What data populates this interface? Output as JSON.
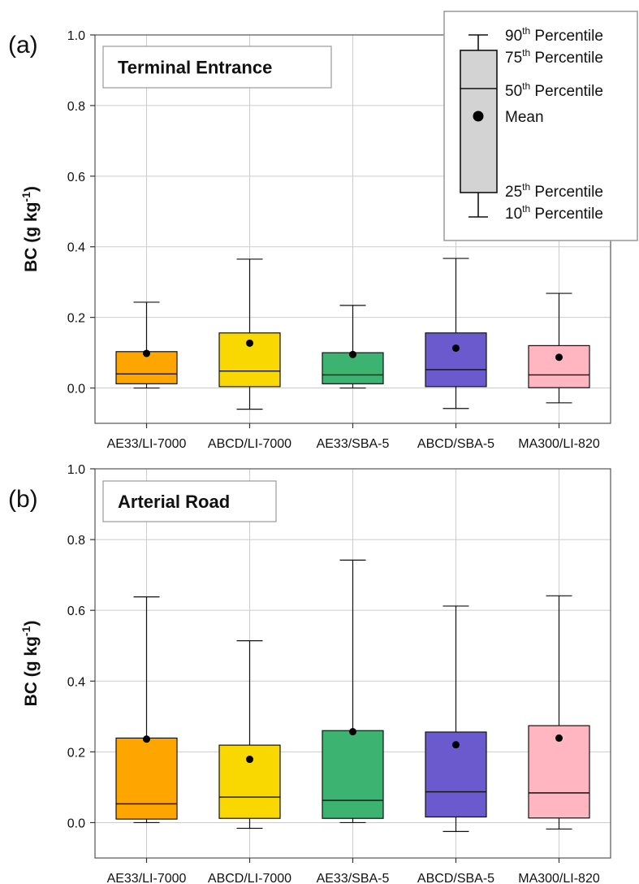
{
  "chart_data": [
    {
      "type": "box",
      "panel_label": "(a)",
      "title": "Terminal Entrance",
      "ylabel": "BC (g kg",
      "ylabel_sup": "-1",
      "ylabel_tail": ")",
      "ylim": [
        -0.1,
        1.0
      ],
      "yticks": [
        "0.0",
        "0.2",
        "0.4",
        "0.6",
        "0.8",
        "1.0"
      ],
      "grid": true,
      "categories": [
        "AE33/LI-7000",
        "ABCD/LI-7000",
        "AE33/SBA-5",
        "ABCD/SBA-5",
        "MA300/LI-820"
      ],
      "boxes": [
        {
          "p10": 0.0,
          "p25": 0.012,
          "median": 0.04,
          "p75": 0.103,
          "p90": 0.243,
          "mean": 0.098,
          "color": "#FFA500"
        },
        {
          "p10": -0.06,
          "p25": 0.004,
          "median": 0.048,
          "p75": 0.156,
          "p90": 0.365,
          "mean": 0.127,
          "color": "#F9D700"
        },
        {
          "p10": 0.0,
          "p25": 0.012,
          "median": 0.037,
          "p75": 0.1,
          "p90": 0.234,
          "mean": 0.095,
          "color": "#3CB371"
        },
        {
          "p10": -0.058,
          "p25": 0.004,
          "median": 0.052,
          "p75": 0.156,
          "p90": 0.367,
          "mean": 0.113,
          "color": "#6A5ACD"
        },
        {
          "p10": -0.042,
          "p25": 0.001,
          "median": 0.037,
          "p75": 0.12,
          "p90": 0.268,
          "mean": 0.087,
          "color": "#FFB6C1"
        }
      ]
    },
    {
      "type": "box",
      "panel_label": "(b)",
      "title": "Arterial Road",
      "ylabel": "BC (g kg",
      "ylabel_sup": "-1",
      "ylabel_tail": ")",
      "ylim": [
        -0.1,
        1.0
      ],
      "yticks": [
        "0.0",
        "0.2",
        "0.4",
        "0.6",
        "0.8",
        "1.0"
      ],
      "grid": true,
      "categories": [
        "AE33/LI-7000",
        "ABCD/LI-7000",
        "AE33/SBA-5",
        "ABCD/SBA-5",
        "MA300/LI-820"
      ],
      "boxes": [
        {
          "p10": 0.0,
          "p25": 0.01,
          "median": 0.053,
          "p75": 0.239,
          "p90": 0.638,
          "mean": 0.236,
          "color": "#FFA500"
        },
        {
          "p10": -0.016,
          "p25": 0.012,
          "median": 0.072,
          "p75": 0.219,
          "p90": 0.514,
          "mean": 0.179,
          "color": "#F9D700"
        },
        {
          "p10": 0.0,
          "p25": 0.012,
          "median": 0.063,
          "p75": 0.26,
          "p90": 0.742,
          "mean": 0.257,
          "color": "#3CB371"
        },
        {
          "p10": -0.025,
          "p25": 0.016,
          "median": 0.087,
          "p75": 0.256,
          "p90": 0.612,
          "mean": 0.22,
          "color": "#6A5ACD"
        },
        {
          "p10": -0.018,
          "p25": 0.013,
          "median": 0.084,
          "p75": 0.274,
          "p90": 0.641,
          "mean": 0.239,
          "color": "#FFB6C1"
        }
      ]
    }
  ],
  "legend": {
    "box_color": "#D3D3D3",
    "items": [
      {
        "key": "p90",
        "num": "90",
        "sup": "th",
        "text": " Percentile"
      },
      {
        "key": "p75",
        "num": "75",
        "sup": "th",
        "text": " Percentile"
      },
      {
        "key": "median",
        "num": "50",
        "sup": "th",
        "text": " Percentile"
      },
      {
        "key": "mean",
        "num": "",
        "sup": "",
        "text": "Mean"
      },
      {
        "key": "p25",
        "num": "25",
        "sup": "th",
        "text": " Percentile"
      },
      {
        "key": "p10",
        "num": "10",
        "sup": "th",
        "text": " Percentile"
      }
    ]
  }
}
